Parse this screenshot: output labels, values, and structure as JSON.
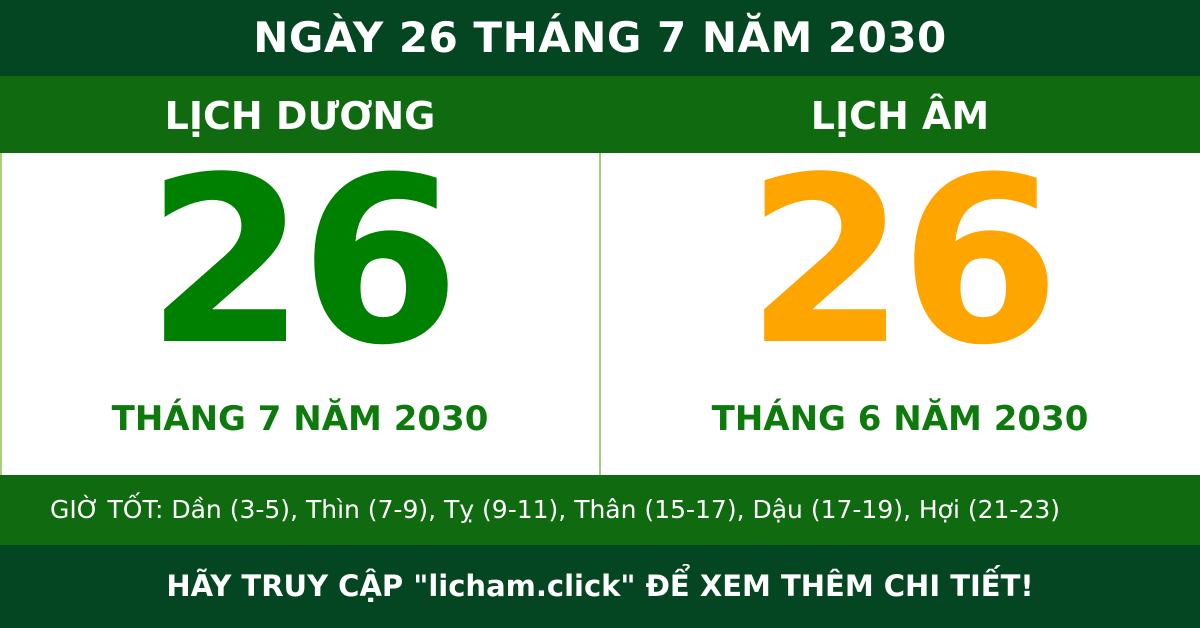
{
  "header": {
    "title": "NGÀY 26 THÁNG 7 NĂM 2030"
  },
  "solar": {
    "label": "LỊCH DƯƠNG",
    "day": "26",
    "month_year": "THÁNG 7 NĂM 2030"
  },
  "lunar": {
    "label": "LỊCH ÂM",
    "day": "26",
    "month_year": "THÁNG 6 NĂM 2030"
  },
  "good_hours": {
    "text": "GIỜ TỐT: Dần (3-5), Thìn (7-9), Tỵ (9-11), Thân (15-17), Dậu (17-19), Hợi (21-23)"
  },
  "footer": {
    "text": "HÃY TRUY CẬP \"licham.click\" ĐỂ XEM THÊM CHI TIẾT!"
  },
  "colors": {
    "dark_green": "#044622",
    "green": "#106b10",
    "solar_number": "#008000",
    "lunar_number": "#ffa500"
  }
}
